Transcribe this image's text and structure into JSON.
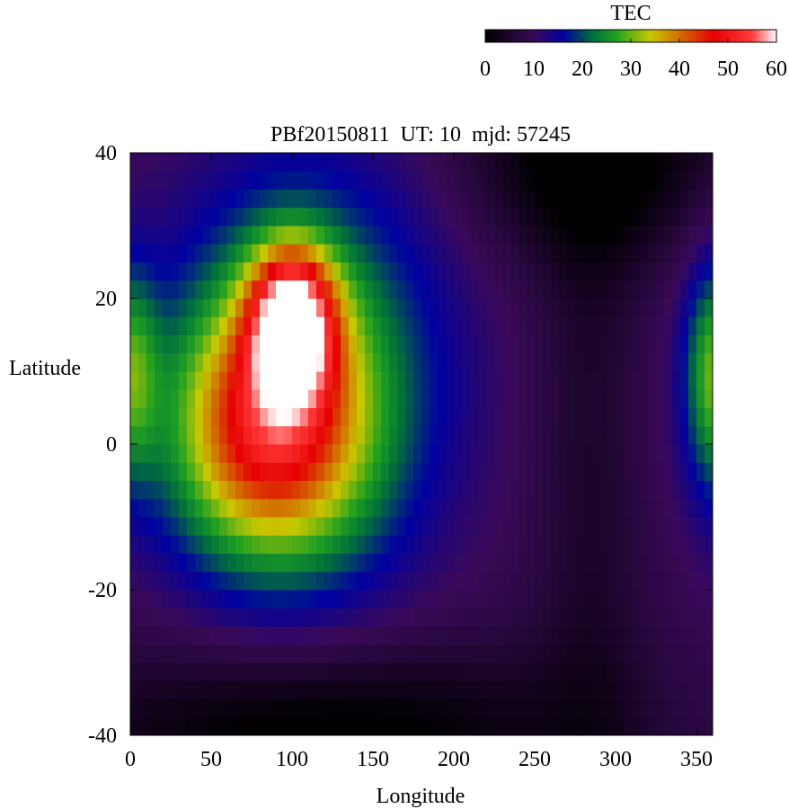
{
  "chart_data": {
    "type": "heatmap",
    "title": "PBf20150811  UT: 10  mjd: 57245",
    "xlabel": "Longitude",
    "ylabel": "Latitude",
    "xlim": [
      0,
      360
    ],
    "ylim": [
      -40,
      40
    ],
    "xticks": [
      "0",
      "50",
      "100",
      "150",
      "200",
      "250",
      "300",
      "350"
    ],
    "yticks": [
      "-40",
      "-20",
      "0",
      "20",
      "40"
    ],
    "colorbar": {
      "label": "TEC",
      "range": [
        0,
        60
      ],
      "ticks": [
        "0",
        "10",
        "20",
        "30",
        "40",
        "50",
        "60"
      ],
      "stops": [
        [
          0,
          "#000000"
        ],
        [
          10,
          "#3a0a5a"
        ],
        [
          16,
          "#0000a0"
        ],
        [
          22,
          "#006e3c"
        ],
        [
          27,
          "#20a020"
        ],
        [
          34,
          "#c8c800"
        ],
        [
          40,
          "#d26e00"
        ],
        [
          47,
          "#e60000"
        ],
        [
          55,
          "#ff3c3c"
        ],
        [
          60,
          "#ffffff"
        ]
      ]
    },
    "grid": false,
    "field": {
      "description_units": "TEC",
      "background": 8,
      "components": [
        {
          "lon": 100,
          "lat": 17,
          "sigma_lon": 18,
          "sigma_lat": 7,
          "peak": 40
        },
        {
          "lon": 85,
          "lat": 2,
          "sigma_lon": 40,
          "sigma_lat": 12,
          "peak": 30
        },
        {
          "lon": 110,
          "lat": 10,
          "sigma_lon": 55,
          "sigma_lat": 20,
          "peak": 14
        },
        {
          "lon": 100,
          "lat": 8,
          "sigma_lon": 100,
          "sigma_lat": 25,
          "peak": 4
        },
        {
          "lon": 360,
          "lat": 10,
          "sigma_lon": 12,
          "sigma_lat": 10,
          "peak": 16
        }
      ],
      "low_regions": [
        {
          "lon": 120,
          "lat": -40,
          "sigma_lon": 110,
          "sigma_lat": 9,
          "depth": 10
        },
        {
          "lon": 290,
          "lat": 40,
          "sigma_lon": 55,
          "sigma_lat": 10,
          "depth": 10
        },
        {
          "lon": 285,
          "lat": 0,
          "sigma_lon": 25,
          "sigma_lat": 60,
          "depth": 4
        }
      ]
    }
  }
}
